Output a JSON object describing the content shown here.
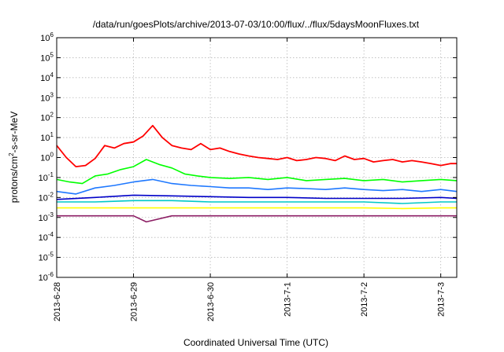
{
  "chart_data": {
    "type": "line",
    "title": "/data/run/goesPlots/archive/2013-07-03/10:00/flux/../flux/5daysMoonFluxes.txt",
    "xlabel": "Coordinated Universal Time (UTC)",
    "ylabel_parts": {
      "base": "protons/cm",
      "sup": "2",
      "rest": "-s-sr-MeV"
    },
    "y_scale": "log",
    "ylim": [
      1e-06,
      1000000.0
    ],
    "y_ticks": [
      {
        "value": 1e-06,
        "base": "10",
        "exp": "-6"
      },
      {
        "value": 1e-05,
        "base": "10",
        "exp": "-5"
      },
      {
        "value": 0.0001,
        "base": "10",
        "exp": "-4"
      },
      {
        "value": 0.001,
        "base": "10",
        "exp": "-3"
      },
      {
        "value": 0.01,
        "base": "10",
        "exp": "-2"
      },
      {
        "value": 0.1,
        "base": "10",
        "exp": "-1"
      },
      {
        "value": 1,
        "base": "10",
        "exp": "0"
      },
      {
        "value": 10,
        "base": "10",
        "exp": "1"
      },
      {
        "value": 100,
        "base": "10",
        "exp": "2"
      },
      {
        "value": 1000,
        "base": "10",
        "exp": "3"
      },
      {
        "value": 10000,
        "base": "10",
        "exp": "4"
      },
      {
        "value": 100000,
        "base": "10",
        "exp": "5"
      },
      {
        "value": 1000000,
        "base": "10",
        "exp": "6"
      }
    ],
    "xlim": [
      "2013-06-28T00:00",
      "2013-07-03T05:00"
    ],
    "x_ticks": [
      "2013-6-28",
      "2013-6-29",
      "2013-6-30",
      "2013-7-1",
      "2013-7-2",
      "2013-7-3"
    ],
    "grid": true,
    "legend": "none",
    "series": [
      {
        "color": "#ff0000",
        "x": [
          "2013-06-28T00:00",
          "2013-06-28T03:00",
          "2013-06-28T06:00",
          "2013-06-28T09:00",
          "2013-06-28T12:00",
          "2013-06-28T15:00",
          "2013-06-28T18:00",
          "2013-06-28T21:00",
          "2013-06-29T00:00",
          "2013-06-29T03:00",
          "2013-06-29T06:00",
          "2013-06-29T09:00",
          "2013-06-29T12:00",
          "2013-06-29T15:00",
          "2013-06-29T18:00",
          "2013-06-29T21:00",
          "2013-06-30T00:00",
          "2013-06-30T03:00",
          "2013-06-30T06:00",
          "2013-06-30T09:00",
          "2013-06-30T12:00",
          "2013-06-30T15:00",
          "2013-06-30T18:00",
          "2013-06-30T21:00",
          "2013-07-01T00:00",
          "2013-07-01T03:00",
          "2013-07-01T06:00",
          "2013-07-01T09:00",
          "2013-07-01T12:00",
          "2013-07-01T15:00",
          "2013-07-01T18:00",
          "2013-07-01T21:00",
          "2013-07-02T00:00",
          "2013-07-02T03:00",
          "2013-07-02T06:00",
          "2013-07-02T09:00",
          "2013-07-02T12:00",
          "2013-07-02T15:00",
          "2013-07-02T18:00",
          "2013-07-02T21:00",
          "2013-07-03T00:00",
          "2013-07-03T03:00",
          "2013-07-03T05:00"
        ],
        "y": [
          4.0,
          1.0,
          0.35,
          0.4,
          0.9,
          4.0,
          3.0,
          5.0,
          6.0,
          12.0,
          40.0,
          10.0,
          4.0,
          3.0,
          2.5,
          5.0,
          2.5,
          3.0,
          2.0,
          1.5,
          1.2,
          1.0,
          0.9,
          0.8,
          1.0,
          0.7,
          0.8,
          1.0,
          0.9,
          0.7,
          1.2,
          0.8,
          0.9,
          0.6,
          0.7,
          0.8,
          0.6,
          0.7,
          0.6,
          0.5,
          0.4,
          0.5,
          0.5
        ]
      },
      {
        "color": "#00ff00",
        "x": [
          "2013-06-28T00:00",
          "2013-06-28T04:00",
          "2013-06-28T08:00",
          "2013-06-28T12:00",
          "2013-06-28T16:00",
          "2013-06-28T20:00",
          "2013-06-29T00:00",
          "2013-06-29T04:00",
          "2013-06-29T08:00",
          "2013-06-29T12:00",
          "2013-06-29T16:00",
          "2013-06-29T20:00",
          "2013-06-30T00:00",
          "2013-06-30T06:00",
          "2013-06-30T12:00",
          "2013-06-30T18:00",
          "2013-07-01T00:00",
          "2013-07-01T06:00",
          "2013-07-01T12:00",
          "2013-07-01T18:00",
          "2013-07-02T00:00",
          "2013-07-02T06:00",
          "2013-07-02T12:00",
          "2013-07-02T18:00",
          "2013-07-03T00:00",
          "2013-07-03T05:00"
        ],
        "y": [
          0.08,
          0.06,
          0.05,
          0.12,
          0.15,
          0.25,
          0.35,
          0.8,
          0.45,
          0.3,
          0.15,
          0.12,
          0.1,
          0.09,
          0.1,
          0.08,
          0.1,
          0.07,
          0.08,
          0.09,
          0.07,
          0.08,
          0.06,
          0.07,
          0.08,
          0.07
        ]
      },
      {
        "color": "#1e78ff",
        "x": [
          "2013-06-28T00:00",
          "2013-06-28T06:00",
          "2013-06-28T12:00",
          "2013-06-28T18:00",
          "2013-06-29T00:00",
          "2013-06-29T06:00",
          "2013-06-29T12:00",
          "2013-06-29T18:00",
          "2013-06-30T00:00",
          "2013-06-30T06:00",
          "2013-06-30T12:00",
          "2013-06-30T18:00",
          "2013-07-01T00:00",
          "2013-07-01T06:00",
          "2013-07-01T12:00",
          "2013-07-01T18:00",
          "2013-07-02T00:00",
          "2013-07-02T06:00",
          "2013-07-02T12:00",
          "2013-07-02T18:00",
          "2013-07-03T00:00",
          "2013-07-03T05:00"
        ],
        "y": [
          0.02,
          0.015,
          0.03,
          0.04,
          0.06,
          0.08,
          0.05,
          0.04,
          0.035,
          0.03,
          0.03,
          0.025,
          0.03,
          0.028,
          0.025,
          0.03,
          0.025,
          0.022,
          0.025,
          0.02,
          0.025,
          0.02
        ]
      },
      {
        "color": "#0000c8",
        "x": [
          "2013-06-28T00:00",
          "2013-06-28T12:00",
          "2013-06-29T00:00",
          "2013-06-29T12:00",
          "2013-06-30T00:00",
          "2013-06-30T12:00",
          "2013-07-01T00:00",
          "2013-07-01T12:00",
          "2013-07-02T00:00",
          "2013-07-02T12:00",
          "2013-07-03T00:00",
          "2013-07-03T05:00"
        ],
        "y": [
          0.008,
          0.01,
          0.013,
          0.012,
          0.011,
          0.01,
          0.01,
          0.009,
          0.009,
          0.009,
          0.01,
          0.009
        ]
      },
      {
        "color": "#00c8c8",
        "x": [
          "2013-06-28T00:00",
          "2013-06-28T12:00",
          "2013-06-29T00:00",
          "2013-06-29T12:00",
          "2013-06-30T00:00",
          "2013-06-30T12:00",
          "2013-07-01T00:00",
          "2013-07-01T12:00",
          "2013-07-02T00:00",
          "2013-07-02T12:00",
          "2013-07-03T00:00",
          "2013-07-03T05:00"
        ],
        "y": [
          0.006,
          0.006,
          0.007,
          0.007,
          0.006,
          0.006,
          0.006,
          0.006,
          0.006,
          0.005,
          0.006,
          0.006
        ]
      },
      {
        "color": "#ffff00",
        "x": [
          "2013-06-28T00:00",
          "2013-06-28T12:00",
          "2013-06-29T00:00",
          "2013-06-29T12:00",
          "2013-06-30T00:00",
          "2013-06-30T12:00",
          "2013-07-01T00:00",
          "2013-07-01T12:00",
          "2013-07-02T00:00",
          "2013-07-02T12:00",
          "2013-07-03T00:00",
          "2013-07-03T05:00"
        ],
        "y": [
          0.003,
          0.003,
          0.003,
          0.003,
          0.003,
          0.003,
          0.003,
          0.003,
          0.003,
          0.0028,
          0.003,
          0.003
        ]
      },
      {
        "color": "#8c1e64",
        "x": [
          "2013-06-28T00:00",
          "2013-06-28T12:00",
          "2013-06-29T00:00",
          "2013-06-29T04:00",
          "2013-06-29T12:00",
          "2013-06-30T00:00",
          "2013-06-30T12:00",
          "2013-07-01T00:00",
          "2013-07-01T12:00",
          "2013-07-02T00:00",
          "2013-07-02T12:00",
          "2013-07-03T00:00",
          "2013-07-03T05:00"
        ],
        "y": [
          0.0012,
          0.0012,
          0.0012,
          0.0006,
          0.0012,
          0.0012,
          0.0012,
          0.0012,
          0.0012,
          0.0012,
          0.0012,
          0.0012,
          0.0012
        ]
      }
    ]
  }
}
